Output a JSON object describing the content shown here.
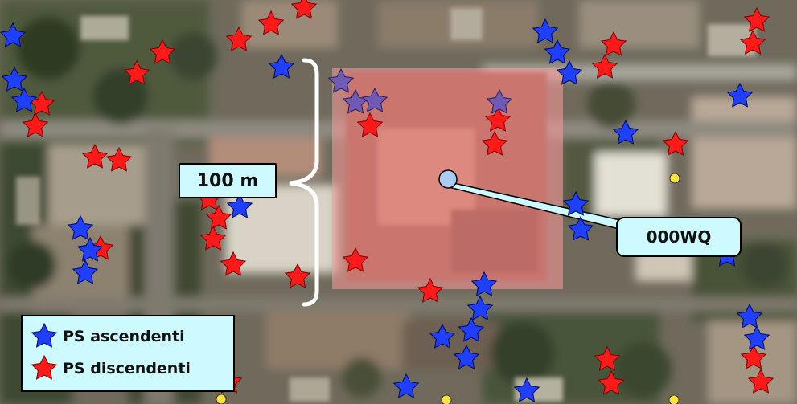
{
  "scale_label": "100 m",
  "point_label": "000WQ",
  "legend": {
    "items": [
      {
        "label": "PS ascendenti",
        "color": "#1f3fff"
      },
      {
        "label": "PS discendenti",
        "color": "#ff1a1a"
      }
    ]
  },
  "colors": {
    "ascending_star": "#1f3fff",
    "descending_star": "#ff1a1a",
    "mixed_star": "#6f5ab4",
    "overlay": "#ff9a9a",
    "point_marker": "#a9cdf6",
    "yellow_marker": "#ffe23a"
  },
  "icons": {
    "ascending": "blue-star-icon",
    "descending": "red-star-icon",
    "point": "circle-marker-icon"
  }
}
